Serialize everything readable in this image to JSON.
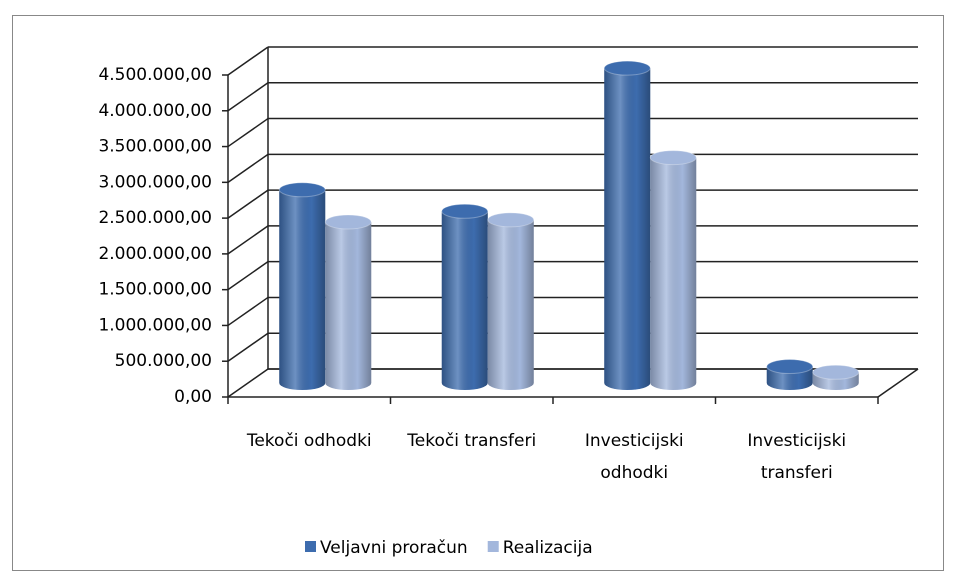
{
  "chart_data": {
    "type": "bar3d",
    "categories": [
      "Tekoči odhodki",
      "Tekoči transferi",
      "Investicijski odhodki",
      "Investicijski transferi"
    ],
    "series": [
      {
        "name": "Veljavni proračun",
        "color": "#3d6cae",
        "values": [
          2700000,
          2400000,
          4400000,
          230000
        ]
      },
      {
        "name": "Realizacija",
        "color": "#a3b7dc",
        "values": [
          2250000,
          2280000,
          3150000,
          150000
        ]
      }
    ],
    "ylim": [
      0,
      4500000
    ],
    "yticks": [
      {
        "value": 0,
        "label": "0,00"
      },
      {
        "value": 500000,
        "label": "500.000,00"
      },
      {
        "value": 1000000,
        "label": "1.000.000,00"
      },
      {
        "value": 1500000,
        "label": "1.500.000,00"
      },
      {
        "value": 2000000,
        "label": "2.000.000,00"
      },
      {
        "value": 2500000,
        "label": "2.500.000,00"
      },
      {
        "value": 3000000,
        "label": "3.000.000,00"
      },
      {
        "value": 3500000,
        "label": "3.500.000,00"
      },
      {
        "value": 4000000,
        "label": "4.000.000,00"
      },
      {
        "value": 4500000,
        "label": "4.500.000,00"
      }
    ],
    "grid": true,
    "legend": "bottom"
  }
}
